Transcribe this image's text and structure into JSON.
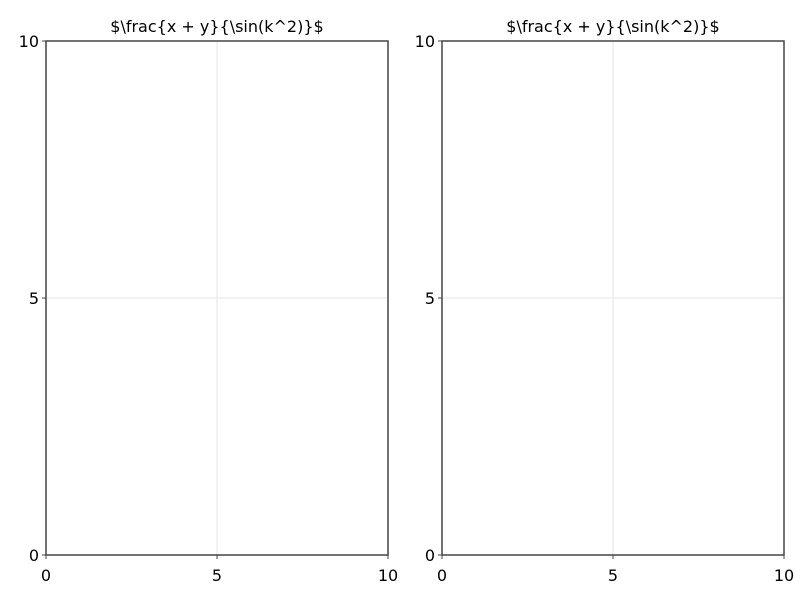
{
  "chart_data": [
    {
      "type": "line",
      "title": "$\\frac{x + y}{\\sin(k^2)}$",
      "xlabel": "",
      "ylabel": "",
      "xlim": [
        0,
        10
      ],
      "ylim": [
        0,
        10
      ],
      "xticks": [
        "0",
        "5",
        "10"
      ],
      "yticks": [
        "0",
        "5",
        "10"
      ],
      "grid": true,
      "series": []
    },
    {
      "type": "line",
      "title": "$\\frac{x + y}{\\sin(k^2)}$",
      "xlabel": "",
      "ylabel": "",
      "xlim": [
        0,
        10
      ],
      "ylim": [
        0,
        10
      ],
      "xticks": [
        "0",
        "5",
        "10"
      ],
      "yticks": [
        "0",
        "5",
        "10"
      ],
      "grid": true,
      "series": []
    }
  ]
}
